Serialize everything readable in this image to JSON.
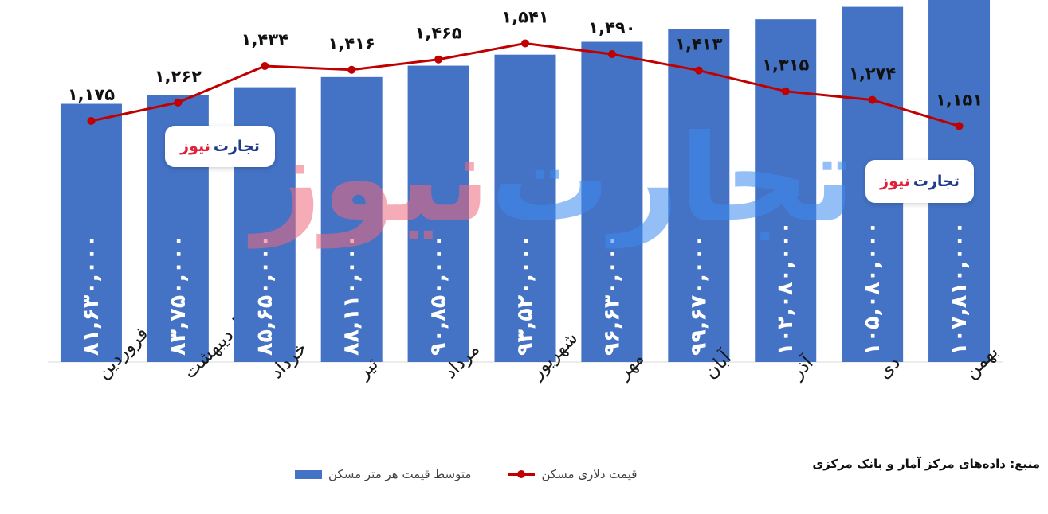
{
  "chart_data": {
    "type": "bar",
    "categories": [
      "فروردین",
      "اردیبهشت",
      "خرداد",
      "تیر",
      "مرداد",
      "شهریور",
      "مهر",
      "آبان",
      "آذر",
      "دی",
      "بهمن"
    ],
    "series": [
      {
        "name": "متوسط قیمت هر متر مسکن",
        "type": "bar",
        "color": "#4472C4",
        "values": [
          81630000,
          83750000,
          85650000,
          88110000,
          90850000,
          93520000,
          96630000,
          99670000,
          102080000,
          105080000,
          107810000
        ],
        "labels": [
          "۸۱,۶۳۰,۰۰۰",
          "۸۳,۷۵۰,۰۰۰",
          "۸۵,۶۵۰,۰۰۰",
          "۸۸,۱۱۰,۰۰۰",
          "۹۰,۸۵۰,۰۰۰",
          "۹۳,۵۲۰,۰۰۰",
          "۹۶,۶۳۰,۰۰۰",
          "۹۹,۶۷۰,۰۰۰",
          "۱۰۲,۰۸۰,۰۰۰",
          "۱۰۵,۰۸۰,۰۰۰",
          "۱۰۷,۸۱۰,۰۰۰"
        ]
      },
      {
        "name": "قیمت دلاری مسکن",
        "type": "line",
        "color": "#C00000",
        "values": [
          1175,
          1262,
          1434,
          1416,
          1465,
          1541,
          1490,
          1413,
          1315,
          1274,
          1151
        ],
        "labels": [
          "۱,۱۷۵",
          "۱,۲۶۲",
          "۱,۴۳۴",
          "۱,۴۱۶",
          "۱,۴۶۵",
          "۱,۵۴۱",
          "۱,۴۹۰",
          "۱,۴۱۳",
          "۱,۳۱۵",
          "۱,۲۷۴",
          "۱,۱۵۱"
        ]
      }
    ],
    "grid": false,
    "legend_position": "bottom"
  },
  "legend": {
    "bar_label": "متوسط قیمت هر متر مسکن",
    "line_label": "قیمت دلاری مسکن"
  },
  "source": "منبع: داده‌های مرکز آمار و بانک مرکزی",
  "watermark": {
    "text_blue": "تجارت",
    "text_red": "نیوز"
  },
  "colors": {
    "bar": "#4472C4",
    "line": "#C00000",
    "brand_blue": "#1f3c88",
    "brand_red": "#e0203a"
  }
}
